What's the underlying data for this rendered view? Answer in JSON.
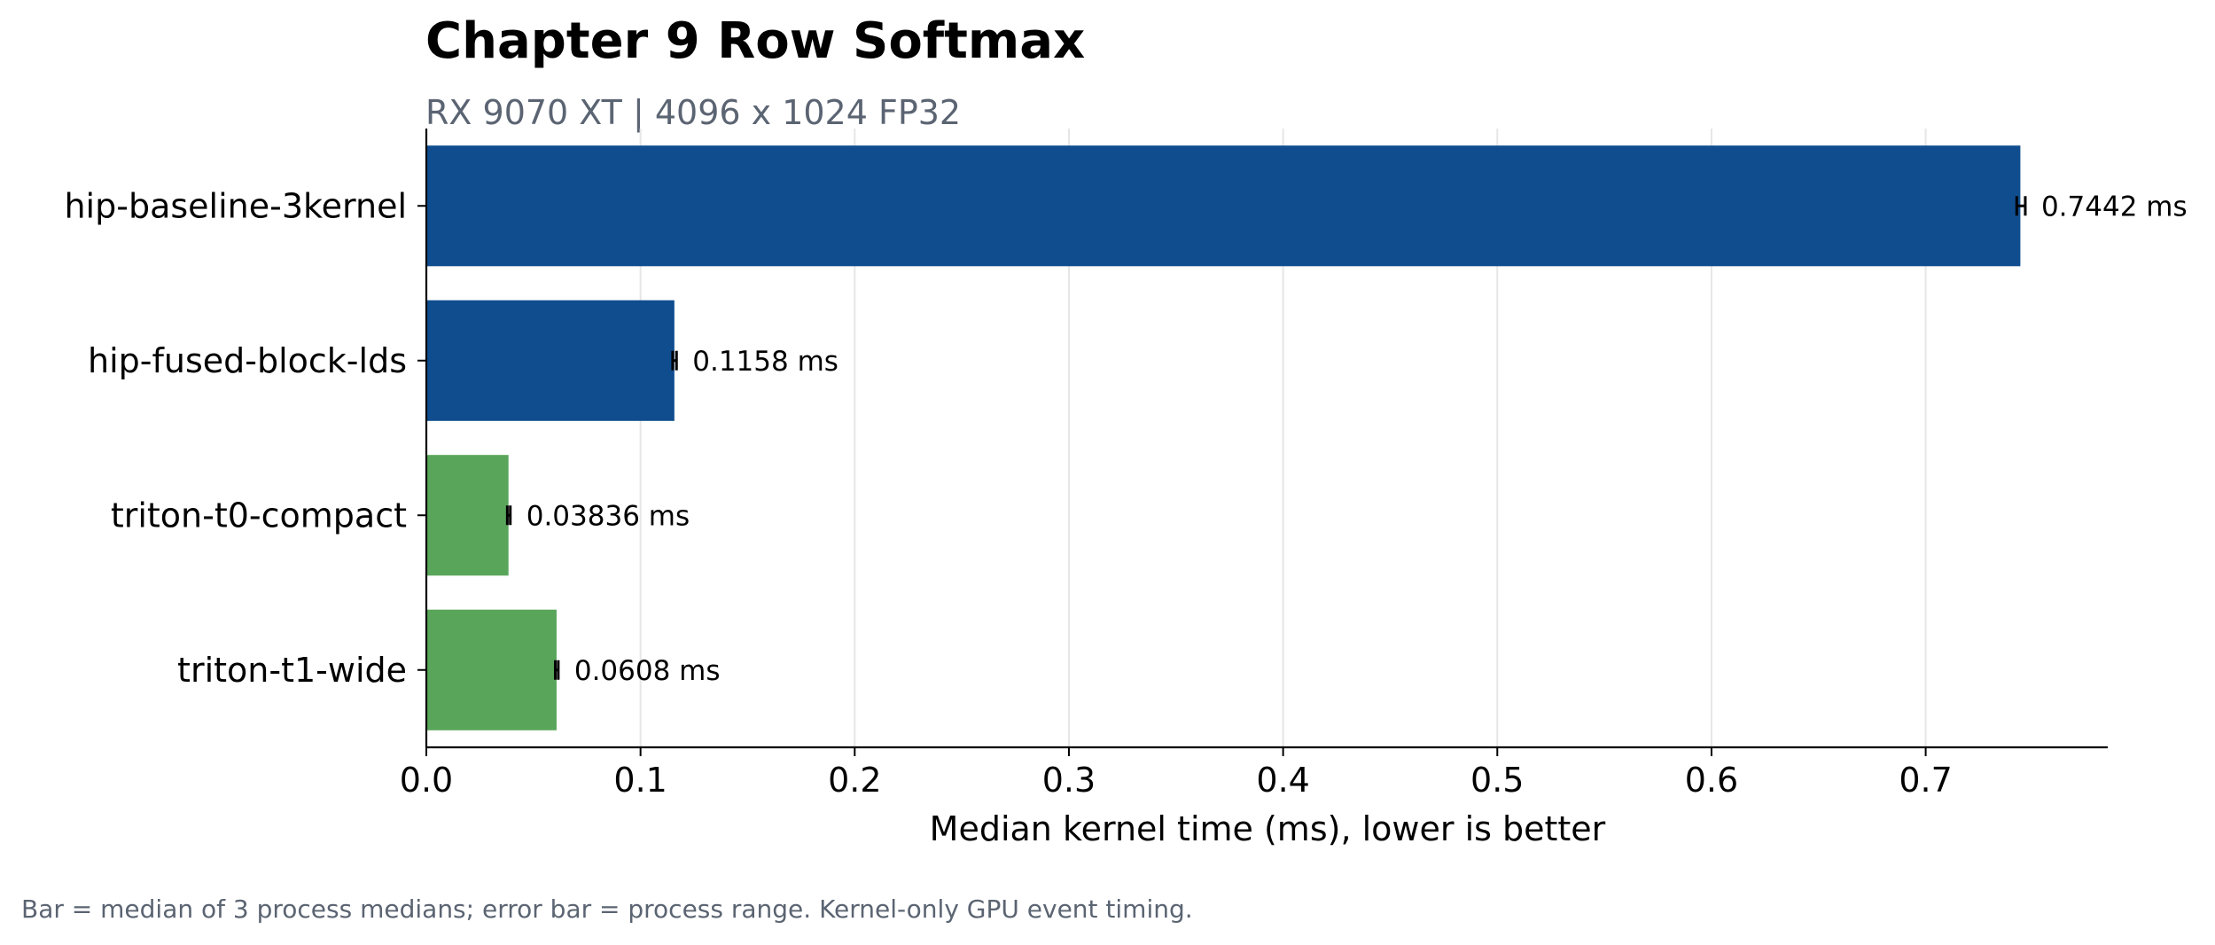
{
  "chart_data": {
    "type": "bar",
    "orientation": "horizontal",
    "title": "Chapter 9 Row Softmax",
    "subtitle": "RX 9070 XT | 4096 x 1024 FP32",
    "xlabel": "Median kernel time (ms), lower is better",
    "ylabel": "",
    "xlim": [
      0,
      0.785
    ],
    "xticks": [
      0.0,
      0.1,
      0.2,
      0.3,
      0.4,
      0.5,
      0.6,
      0.7
    ],
    "xtick_labels": [
      "0.0",
      "0.1",
      "0.2",
      "0.3",
      "0.4",
      "0.5",
      "0.6",
      "0.7"
    ],
    "grid": "vertical",
    "categories": [
      "hip-baseline-3kernel",
      "hip-fused-block-lds",
      "triton-t0-compact",
      "triton-t1-wide"
    ],
    "values": [
      0.7442,
      0.1158,
      0.03836,
      0.0608
    ],
    "error_ranges": [
      [
        0.7425,
        0.7465
      ],
      [
        0.115,
        0.1168
      ],
      [
        0.0378,
        0.0392
      ],
      [
        0.0602,
        0.0616
      ]
    ],
    "data_labels": [
      "0.7442 ms",
      "0.1158 ms",
      "0.03836 ms",
      "0.0608 ms"
    ],
    "colors": [
      "#0f4d8f",
      "#0f4d8f",
      "#59a65b",
      "#59a65b"
    ],
    "footnote": "Bar = median of 3 process medians; error bar = process range. Kernel-only GPU event timing."
  }
}
